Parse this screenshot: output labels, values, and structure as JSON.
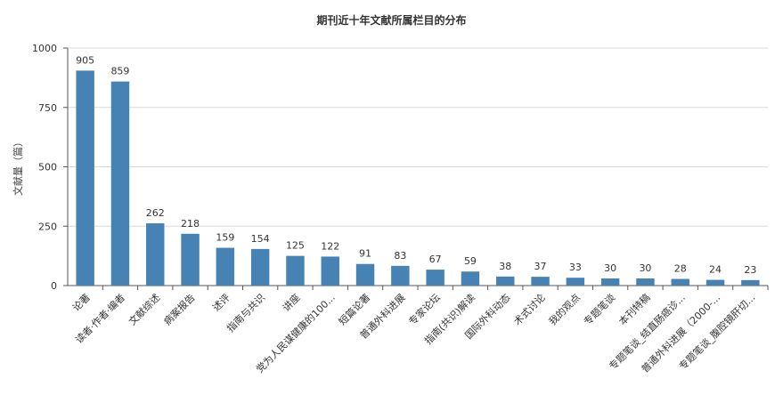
{
  "chart_data": {
    "type": "bar",
    "title": "期刊近十年文献所属栏目的分布",
    "xlabel": "",
    "ylabel": "文献量（篇）",
    "ylim": [
      0,
      1000
    ],
    "yticks": [
      0,
      250,
      500,
      750,
      1000
    ],
    "grid": true,
    "bar_color": "#4682b4",
    "categories": [
      "论著",
      "读者·作者·编者",
      "文献综述",
      "病案报告",
      "述评",
      "指南与共识",
      "讲座",
      "党为人民谋健康的100...",
      "短篇论著",
      "普通外科进展",
      "专家论坛",
      "指南(共识)解读",
      "国际外科动态",
      "术式讨论",
      "我的观点",
      "专题笔谈",
      "本刊特稿",
      "专题笔谈_结直肠癌诊...",
      "普通外科进展（2000-...",
      "专题笔谈_腹腔镜肝切..."
    ],
    "values": [
      905,
      859,
      262,
      218,
      159,
      154,
      125,
      122,
      91,
      83,
      67,
      59,
      38,
      37,
      33,
      30,
      30,
      28,
      24,
      23
    ]
  }
}
